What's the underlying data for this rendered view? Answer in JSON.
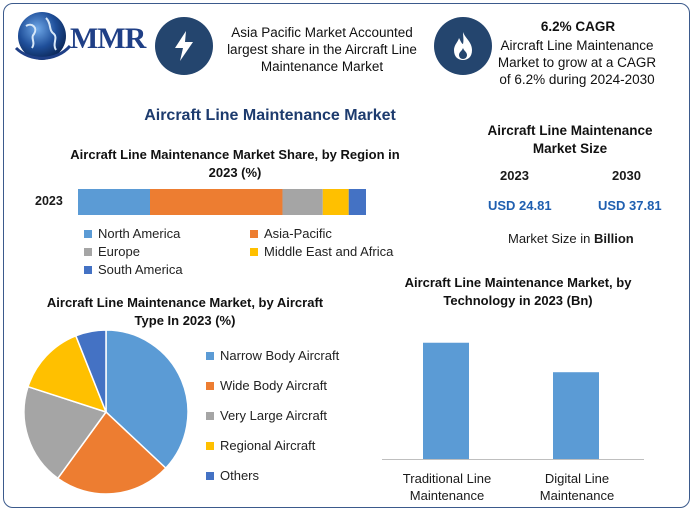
{
  "logo": {
    "text": "MMR"
  },
  "highlights": {
    "region_text": "Asia Pacific Market Accounted largest share in the Aircraft Line Maintenance Market",
    "cagr_title": "6.2% CAGR",
    "cagr_text": "Aircraft Line Maintenance Market to grow at a CAGR of 6.2% during 2024-2030"
  },
  "main_title": "Aircraft Line Maintenance Market",
  "market_size": {
    "title": "Aircraft Line Maintenance Market Size",
    "year1": "2023",
    "year2": "2030",
    "value1": "USD 24.81",
    "value2": "USD 37.81",
    "note_prefix": "Market Size in ",
    "note_bold": "Billion"
  },
  "colors": {
    "blue": "#5b9bd5",
    "orange": "#ed7d31",
    "gray": "#a5a5a5",
    "yellow": "#ffc000",
    "darkblue": "#4472c4",
    "icon_bg": "#24456e",
    "title_blue": "#1d3b6e"
  },
  "icons": [
    "globe-icon",
    "lightning-icon",
    "flame-icon"
  ],
  "chart_data": [
    {
      "type": "bar",
      "orientation": "horizontal-stacked",
      "title": "Aircraft Line Maintenance Market Share, by Region in 2023 (%)",
      "categories": [
        "2023"
      ],
      "series": [
        {
          "name": "North America",
          "values": [
            25
          ],
          "color": "#5b9bd5"
        },
        {
          "name": "Asia-Pacific",
          "values": [
            46
          ],
          "color": "#ed7d31"
        },
        {
          "name": "Europe",
          "values": [
            14
          ],
          "color": "#a5a5a5"
        },
        {
          "name": "Middle East and Africa",
          "values": [
            9
          ],
          "color": "#ffc000"
        },
        {
          "name": "South America",
          "values": [
            6
          ],
          "color": "#4472c4"
        }
      ],
      "xlim": [
        0,
        100
      ],
      "legend": "bottom"
    },
    {
      "type": "pie",
      "title": "Aircraft Line Maintenance Market, by Aircraft Type In 2023 (%)",
      "categories": [
        "Narrow Body Aircraft",
        "Wide Body Aircraft",
        "Very Large Aircraft",
        "Regional Aircraft",
        "Others"
      ],
      "values": [
        37,
        23,
        20,
        14,
        6
      ],
      "colors": [
        "#5b9bd5",
        "#ed7d31",
        "#a5a5a5",
        "#ffc000",
        "#4472c4"
      ],
      "legend": "right"
    },
    {
      "type": "bar",
      "title": "Aircraft Line Maintenance Market, by Technology in 2023 (Bn)",
      "categories": [
        "Traditional Line Maintenance",
        "Digital Line Maintenance"
      ],
      "values": [
        14.2,
        10.6
      ],
      "ylim": [
        0,
        16
      ],
      "color": "#5b9bd5"
    }
  ]
}
